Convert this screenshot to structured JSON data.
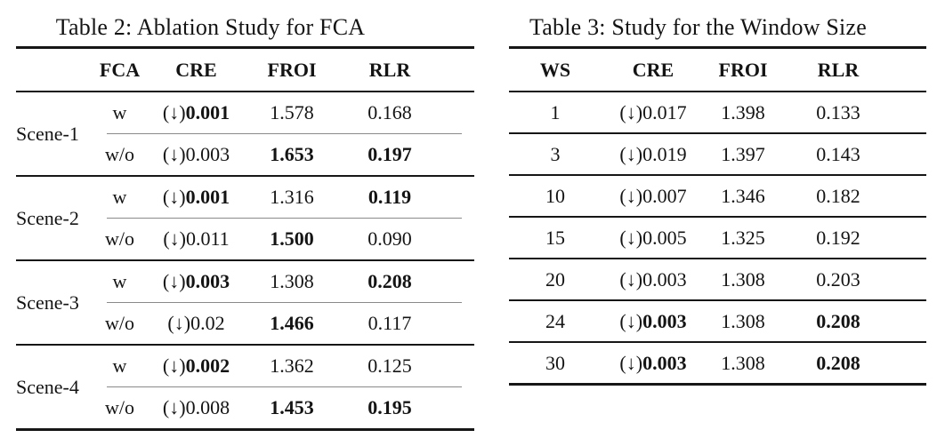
{
  "colors": {
    "background": "#ffffff",
    "text": "#141414",
    "rule": "#161616",
    "cline": "#8a8a8a"
  },
  "tables": [
    {
      "title": "Table 2: Ablation Study for FCA",
      "arrow": "(↓)",
      "headers": {
        "fca": "FCA",
        "cre": "CRE",
        "froi": "FROI",
        "rlr": "RLR"
      },
      "groups": [
        {
          "scene": "Scene-1",
          "rows": [
            {
              "fca": "w",
              "cre": "0.001",
              "cre_bold": true,
              "froi": "1.578",
              "froi_bold": false,
              "rlr": "0.168",
              "rlr_bold": false
            },
            {
              "fca": "w/o",
              "cre": "0.003",
              "cre_bold": false,
              "froi": "1.653",
              "froi_bold": true,
              "rlr": "0.197",
              "rlr_bold": true
            }
          ]
        },
        {
          "scene": "Scene-2",
          "rows": [
            {
              "fca": "w",
              "cre": "0.001",
              "cre_bold": true,
              "froi": "1.316",
              "froi_bold": false,
              "rlr": "0.119",
              "rlr_bold": true
            },
            {
              "fca": "w/o",
              "cre": "0.011",
              "cre_bold": false,
              "froi": "1.500",
              "froi_bold": true,
              "rlr": "0.090",
              "rlr_bold": false
            }
          ]
        },
        {
          "scene": "Scene-3",
          "rows": [
            {
              "fca": "w",
              "cre": "0.003",
              "cre_bold": true,
              "froi": "1.308",
              "froi_bold": false,
              "rlr": "0.208",
              "rlr_bold": true
            },
            {
              "fca": "w/o",
              "cre": "0.02",
              "cre_bold": false,
              "froi": "1.466",
              "froi_bold": true,
              "rlr": "0.117",
              "rlr_bold": false
            }
          ]
        },
        {
          "scene": "Scene-4",
          "rows": [
            {
              "fca": "w",
              "cre": "0.002",
              "cre_bold": true,
              "froi": "1.362",
              "froi_bold": false,
              "rlr": "0.125",
              "rlr_bold": false
            },
            {
              "fca": "w/o",
              "cre": "0.008",
              "cre_bold": false,
              "froi": "1.453",
              "froi_bold": true,
              "rlr": "0.195",
              "rlr_bold": true
            }
          ]
        }
      ]
    },
    {
      "title": "Table 3: Study for the Window Size",
      "arrow": "(↓)",
      "headers": {
        "ws": "WS",
        "cre": "CRE",
        "froi": "FROI",
        "rlr": "RLR"
      },
      "rows": [
        {
          "ws": "1",
          "cre": "0.017",
          "cre_bold": false,
          "froi": "1.398",
          "froi_bold": false,
          "rlr": "0.133",
          "rlr_bold": false
        },
        {
          "ws": "3",
          "cre": "0.019",
          "cre_bold": false,
          "froi": "1.397",
          "froi_bold": false,
          "rlr": "0.143",
          "rlr_bold": false
        },
        {
          "ws": "10",
          "cre": "0.007",
          "cre_bold": false,
          "froi": "1.346",
          "froi_bold": false,
          "rlr": "0.182",
          "rlr_bold": false
        },
        {
          "ws": "15",
          "cre": "0.005",
          "cre_bold": false,
          "froi": "1.325",
          "froi_bold": false,
          "rlr": "0.192",
          "rlr_bold": false
        },
        {
          "ws": "20",
          "cre": "0.003",
          "cre_bold": false,
          "froi": "1.308",
          "froi_bold": false,
          "rlr": "0.203",
          "rlr_bold": false
        },
        {
          "ws": "24",
          "cre": "0.003",
          "cre_bold": true,
          "froi": "1.308",
          "froi_bold": false,
          "rlr": "0.208",
          "rlr_bold": true
        },
        {
          "ws": "30",
          "cre": "0.003",
          "cre_bold": true,
          "froi": "1.308",
          "froi_bold": false,
          "rlr": "0.208",
          "rlr_bold": true
        }
      ]
    }
  ]
}
